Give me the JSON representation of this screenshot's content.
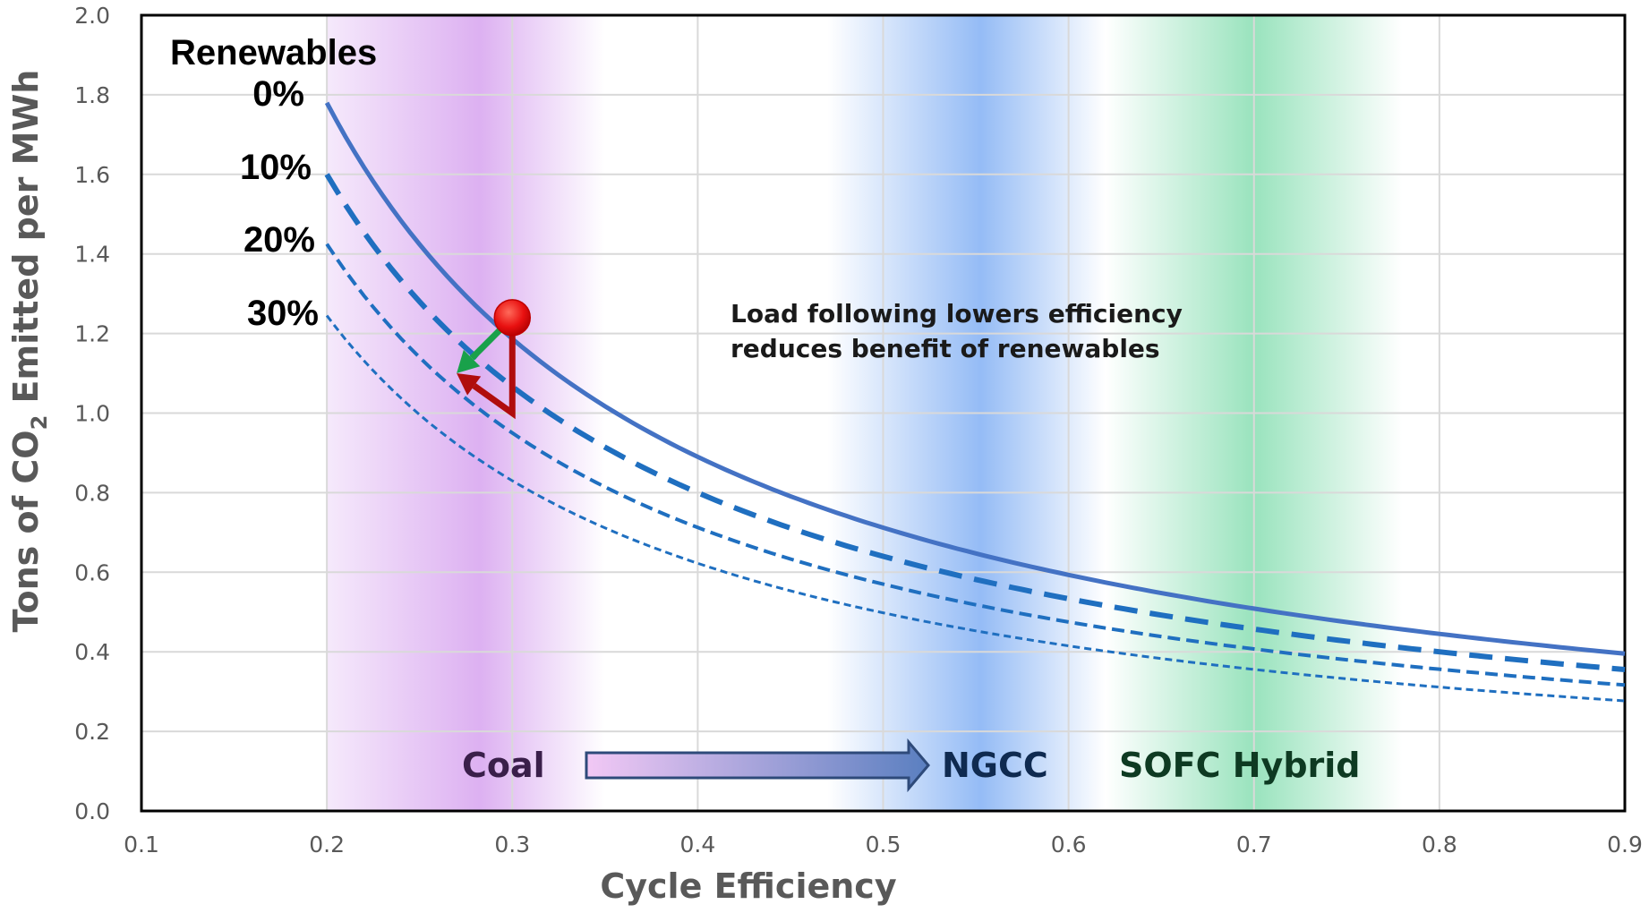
{
  "chart_data": {
    "type": "line",
    "title": "",
    "xlabel": "Cycle Efficiency",
    "ylabel_parts": [
      "Tons of CO",
      "2",
      " Emitted per MWh"
    ],
    "xlim": [
      0.1,
      0.9
    ],
    "ylim": [
      0.0,
      2.0
    ],
    "x_ticks": [
      "0.1",
      "0.2",
      "0.3",
      "0.4",
      "0.5",
      "0.6",
      "0.7",
      "0.8",
      "0.9"
    ],
    "y_ticks": [
      "0.0",
      "0.2",
      "0.4",
      "0.6",
      "0.8",
      "1.0",
      "1.2",
      "1.4",
      "1.6",
      "1.8",
      "2.0"
    ],
    "grid": true,
    "legend_title": "Renewables",
    "series": [
      {
        "name": "0%",
        "style": "solid",
        "color": "#4472C4",
        "coef": 0.356,
        "x": [
          0.2,
          0.3,
          0.4,
          0.5,
          0.6,
          0.7,
          0.8,
          0.9
        ],
        "values": [
          1.78,
          1.19,
          0.89,
          0.71,
          0.59,
          0.51,
          0.45,
          0.4
        ]
      },
      {
        "name": "10%",
        "style": "long-dash",
        "color": "#1F6FC0",
        "coef": 0.32,
        "x": [
          0.2,
          0.3,
          0.4,
          0.5,
          0.6,
          0.7,
          0.8,
          0.9
        ],
        "values": [
          1.6,
          1.07,
          0.8,
          0.64,
          0.53,
          0.46,
          0.4,
          0.36
        ]
      },
      {
        "name": "20%",
        "style": "medium-dash",
        "color": "#1F6FC0",
        "coef": 0.285,
        "x": [
          0.2,
          0.3,
          0.4,
          0.5,
          0.6,
          0.7,
          0.8,
          0.9
        ],
        "values": [
          1.42,
          0.95,
          0.71,
          0.57,
          0.47,
          0.41,
          0.36,
          0.32
        ]
      },
      {
        "name": "30%",
        "style": "short-dash",
        "color": "#1F6FC0",
        "coef": 0.249,
        "x": [
          0.2,
          0.3,
          0.4,
          0.5,
          0.6,
          0.7,
          0.8,
          0.9
        ],
        "values": [
          1.25,
          0.83,
          0.62,
          0.5,
          0.42,
          0.36,
          0.31,
          0.28
        ]
      }
    ],
    "regions": [
      {
        "name": "Coal",
        "x_range": [
          0.2,
          0.35
        ],
        "color": "#D9A8F0",
        "label_color": "#3A1F4A"
      },
      {
        "name": "NGCC",
        "x_range": [
          0.47,
          0.62
        ],
        "color": "#8FB8F5",
        "label_color": "#0F2A50"
      },
      {
        "name": "SOFC Hybrid",
        "x_range": [
          0.62,
          0.78
        ],
        "color": "#8EE0B6",
        "label_color": "#0E3A22"
      }
    ],
    "marker": {
      "x": 0.3,
      "y": 1.24,
      "color": "#E81010"
    },
    "arrows": [
      {
        "from": [
          0.3,
          1.24
        ],
        "to": [
          0.27,
          1.1
        ],
        "color": "#19A14A"
      },
      {
        "from": [
          0.3,
          1.24
        ],
        "via": [
          0.3,
          1.0
        ],
        "to": [
          0.27,
          1.1
        ],
        "color": "#B00D0D"
      }
    ],
    "annotation": [
      "Load following lowers efficiency",
      "reduces benefit of renewables"
    ]
  }
}
